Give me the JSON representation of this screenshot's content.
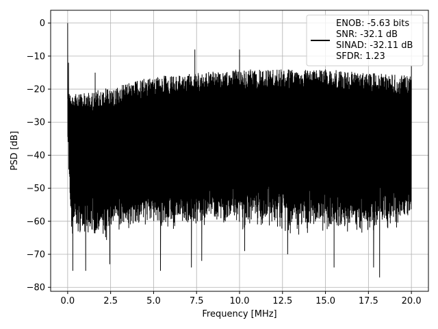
{
  "chart_data": {
    "type": "line",
    "title": "",
    "xlabel": "Frequency [MHz]",
    "ylabel": "PSD [dB]",
    "xlim": [
      -0.99,
      20.99
    ],
    "ylim": [
      -81.2,
      3.87
    ],
    "xticks": [
      0.0,
      2.5,
      5.0,
      7.5,
      10.0,
      12.5,
      15.0,
      17.5,
      20.0
    ],
    "xtick_labels": [
      "0.0",
      "2.5",
      "5.0",
      "7.5",
      "10.0",
      "12.5",
      "15.0",
      "17.5",
      "20.0"
    ],
    "yticks": [
      0,
      -10,
      -20,
      -30,
      -40,
      -50,
      -60,
      -70,
      -80
    ],
    "ytick_labels": [
      "0",
      "−10",
      "−20",
      "−30",
      "−40",
      "−50",
      "−60",
      "−70",
      "−80"
    ],
    "grid": true,
    "series": [
      {
        "color": "#000000",
        "x_range": [
          0.0,
          20.0
        ],
        "upper_envelope": [
          [
            0.0,
            -19
          ],
          [
            0.1,
            -21
          ],
          [
            1.0,
            -21
          ],
          [
            2.0,
            -20
          ],
          [
            3.0,
            -19
          ],
          [
            5.0,
            -16
          ],
          [
            7.5,
            -15
          ],
          [
            10.0,
            -14
          ],
          [
            12.5,
            -14
          ],
          [
            15.0,
            -14
          ],
          [
            17.5,
            -15
          ],
          [
            20.0,
            -16
          ]
        ],
        "lower_envelope": [
          [
            0.0,
            -36
          ],
          [
            0.2,
            -62
          ],
          [
            1.0,
            -64
          ],
          [
            2.5,
            -62
          ],
          [
            5.0,
            -60
          ],
          [
            7.5,
            -60
          ],
          [
            10.0,
            -60
          ],
          [
            12.5,
            -61
          ],
          [
            15.0,
            -62
          ],
          [
            17.5,
            -62
          ],
          [
            20.0,
            -58
          ]
        ],
        "peaks": [
          {
            "x": 0.0,
            "y": 0.0
          },
          {
            "x": 0.05,
            "y": -12
          },
          {
            "x": 1.6,
            "y": -15
          },
          {
            "x": 7.4,
            "y": -8
          },
          {
            "x": 10.0,
            "y": -8
          },
          {
            "x": 20.0,
            "y": -13
          }
        ],
        "deep_dips": [
          {
            "x": 0.3,
            "y": -75
          },
          {
            "x": 1.05,
            "y": -75
          },
          {
            "x": 2.45,
            "y": -73
          },
          {
            "x": 5.4,
            "y": -75
          },
          {
            "x": 7.2,
            "y": -74
          },
          {
            "x": 7.8,
            "y": -72
          },
          {
            "x": 15.5,
            "y": -74
          },
          {
            "x": 17.8,
            "y": -74
          },
          {
            "x": 18.15,
            "y": -77
          },
          {
            "x": 12.8,
            "y": -70
          },
          {
            "x": 10.3,
            "y": -69
          }
        ]
      }
    ],
    "legend": {
      "position": "top-right",
      "lines": [
        "ENOB: -5.63 bits",
        "SNR: -32.1 dB",
        "SINAD: -32.11 dB",
        "SFDR: 1.23"
      ]
    }
  }
}
